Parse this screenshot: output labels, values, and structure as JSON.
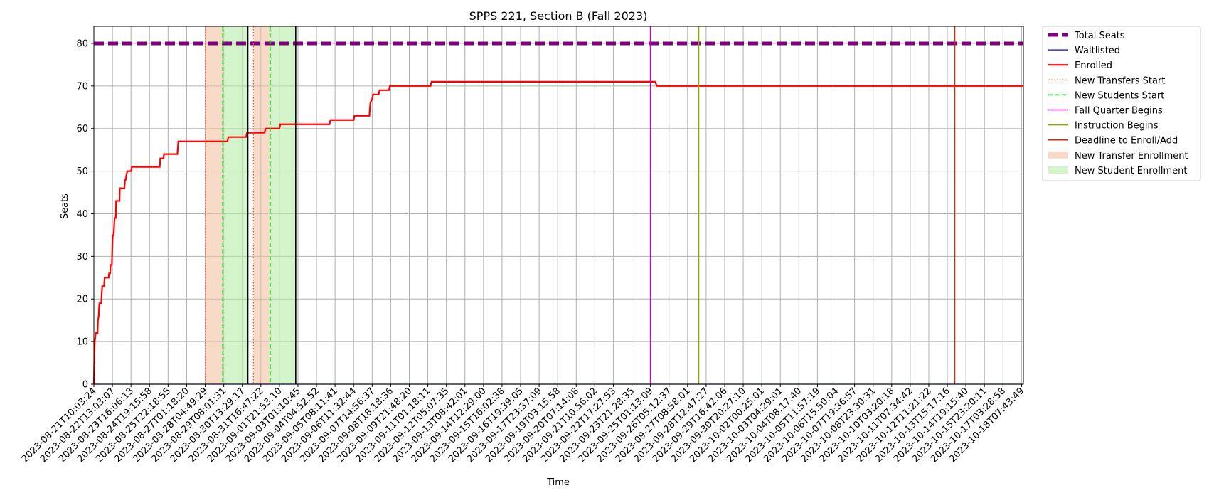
{
  "chart_data": {
    "type": "line",
    "title": "SPPS 221, Section B (Fall 2023)",
    "xlabel": "Time",
    "ylabel": "Seats",
    "ylim": [
      0,
      84
    ],
    "yticks": [
      0,
      10,
      20,
      30,
      40,
      50,
      60,
      70,
      80
    ],
    "grid": true,
    "legend_position": "outside-right",
    "x_ticks": [
      "2023-08-21T10:03:24",
      "2023-08-22T13:03:07",
      "2023-08-23T16:06:13",
      "2023-08-24T19:15:58",
      "2023-08-25T22:18:55",
      "2023-08-27T01:18:20",
      "2023-08-28T04:49:29",
      "2023-08-29T08:01:31",
      "2023-08-30T13:29:17",
      "2023-08-31T16:47:22",
      "2023-09-01T21:53:10",
      "2023-09-03T01:10:45",
      "2023-09-04T04:52:52",
      "2023-09-05T08:11:41",
      "2023-09-06T11:32:44",
      "2023-09-07T14:56:37",
      "2023-09-08T18:18:36",
      "2023-09-09T21:48:20",
      "2023-09-11T01:18:11",
      "2023-09-12T05:07:35",
      "2023-09-13T08:42:01",
      "2023-09-14T12:29:00",
      "2023-09-15T16:02:38",
      "2023-09-16T19:39:05",
      "2023-09-17T23:37:09",
      "2023-09-19T03:15:58",
      "2023-09-20T07:14:08",
      "2023-09-21T10:56:02",
      "2023-09-22T17:27:53",
      "2023-09-23T21:28:35",
      "2023-09-25T01:13:09",
      "2023-09-26T05:12:37",
      "2023-09-27T08:58:01",
      "2023-09-28T12:47:27",
      "2023-09-29T16:42:06",
      "2023-09-30T20:27:10",
      "2023-10-02T00:25:01",
      "2023-10-03T04:29:01",
      "2023-10-04T08:17:40",
      "2023-10-05T11:57:19",
      "2023-10-06T15:50:04",
      "2023-10-07T19:36:57",
      "2023-10-08T23:30:31",
      "2023-10-10T03:20:18",
      "2023-10-11T07:34:42",
      "2023-10-12T11:21:22",
      "2023-10-13T15:17:16",
      "2023-10-14T19:15:40",
      "2023-10-15T23:20:11",
      "2023-10-17T03:28:58",
      "2023-10-18T07:43:49"
    ],
    "x_range_ticks": [
      0,
      50.1
    ],
    "series": [
      {
        "name": "Total Seats",
        "color": "#800080",
        "style": "dashed-thick",
        "points": [
          [
            0,
            80
          ],
          [
            50.1,
            80
          ]
        ]
      },
      {
        "name": "Waitlisted",
        "color": "#0000ff",
        "style": "solid-thin",
        "points": [
          [
            0,
            0
          ],
          [
            50.1,
            0
          ]
        ]
      },
      {
        "name": "Enrolled",
        "color": "#ff0000",
        "style": "solid-thick",
        "points": [
          [
            0,
            0
          ],
          [
            0.02,
            5
          ],
          [
            0.05,
            10
          ],
          [
            0.1,
            12
          ],
          [
            0.2,
            12
          ],
          [
            0.22,
            15
          ],
          [
            0.26,
            16
          ],
          [
            0.28,
            18
          ],
          [
            0.3,
            19
          ],
          [
            0.4,
            19
          ],
          [
            0.42,
            21
          ],
          [
            0.45,
            23
          ],
          [
            0.55,
            23
          ],
          [
            0.58,
            25
          ],
          [
            0.8,
            25
          ],
          [
            0.82,
            26
          ],
          [
            0.88,
            26
          ],
          [
            0.9,
            28
          ],
          [
            0.97,
            28
          ],
          [
            1.0,
            33
          ],
          [
            1.02,
            35
          ],
          [
            1.07,
            35
          ],
          [
            1.09,
            37
          ],
          [
            1.12,
            39
          ],
          [
            1.18,
            39
          ],
          [
            1.2,
            43
          ],
          [
            1.38,
            43
          ],
          [
            1.4,
            46
          ],
          [
            1.65,
            46
          ],
          [
            1.68,
            48
          ],
          [
            1.72,
            48
          ],
          [
            1.75,
            49
          ],
          [
            1.8,
            50
          ],
          [
            2.0,
            50
          ],
          [
            2.05,
            51
          ],
          [
            3.55,
            51
          ],
          [
            3.58,
            53
          ],
          [
            3.75,
            53
          ],
          [
            3.78,
            54
          ],
          [
            4.5,
            54
          ],
          [
            4.55,
            57
          ],
          [
            7.2,
            57
          ],
          [
            7.25,
            58
          ],
          [
            8.2,
            58
          ],
          [
            8.25,
            59
          ],
          [
            9.2,
            59
          ],
          [
            9.25,
            60
          ],
          [
            10.0,
            60
          ],
          [
            10.05,
            61
          ],
          [
            12.7,
            61
          ],
          [
            12.75,
            62
          ],
          [
            14.0,
            62
          ],
          [
            14.05,
            63
          ],
          [
            14.85,
            63
          ],
          [
            14.9,
            66
          ],
          [
            15.0,
            67
          ],
          [
            15.05,
            68
          ],
          [
            15.35,
            68
          ],
          [
            15.4,
            69
          ],
          [
            15.9,
            69
          ],
          [
            15.95,
            70
          ],
          [
            18.15,
            70
          ],
          [
            18.2,
            71
          ],
          [
            30.25,
            71
          ],
          [
            30.35,
            70
          ],
          [
            50.1,
            70
          ]
        ]
      }
    ],
    "vlines": [
      {
        "name": "New Transfers Start",
        "color": "#ff5a1f",
        "style": "dotted",
        "x": 6.0
      },
      {
        "name": "New Students Start",
        "color": "#33cc33",
        "style": "dashed",
        "x": 6.95
      },
      {
        "name": "",
        "color": "#000000",
        "style": "solid",
        "x": 8.3
      },
      {
        "name": "",
        "color": "#ff5a1f",
        "style": "dotted",
        "x": 8.6
      },
      {
        "name": "",
        "color": "#33cc33",
        "style": "dashed",
        "x": 9.5
      },
      {
        "name": "",
        "color": "#000000",
        "style": "solid",
        "x": 10.88
      },
      {
        "name": "Fall Quarter Begins",
        "color": "#cc00cc",
        "style": "solid",
        "x": 30.0
      },
      {
        "name": "Instruction Begins",
        "color": "#88aa00",
        "style": "solid",
        "x": 32.6
      },
      {
        "name": "Deadline to Enroll/Add",
        "color": "#bb3311",
        "style": "solid",
        "x": 46.4
      }
    ],
    "spans": [
      {
        "name": "New Transfer Enrollment",
        "color": "#f4c2a4",
        "x0": 6.0,
        "x1": 6.95
      },
      {
        "name": "New Student Enrollment",
        "color": "#b8edaa",
        "x0": 6.95,
        "x1": 8.3
      },
      {
        "name": "",
        "color": "#f4c2a4",
        "x0": 8.6,
        "x1": 9.5
      },
      {
        "name": "",
        "color": "#b8edaa",
        "x0": 9.5,
        "x1": 10.88
      }
    ],
    "legend": [
      {
        "label": "Total Seats",
        "kind": "line",
        "color": "#800080",
        "style": "dashed-thick"
      },
      {
        "label": "Waitlisted",
        "kind": "line",
        "color": "#0000ff",
        "style": "solid-thin"
      },
      {
        "label": "Enrolled",
        "kind": "line",
        "color": "#ff0000",
        "style": "solid-thick"
      },
      {
        "label": "New Transfers Start",
        "kind": "line",
        "color": "#ff5a1f",
        "style": "dotted"
      },
      {
        "label": "New Students Start",
        "kind": "line",
        "color": "#33cc33",
        "style": "dashed"
      },
      {
        "label": "Fall Quarter Begins",
        "kind": "line",
        "color": "#cc00cc",
        "style": "solid"
      },
      {
        "label": "Instruction Begins",
        "kind": "line",
        "color": "#88aa00",
        "style": "solid"
      },
      {
        "label": "Deadline to Enroll/Add",
        "kind": "line",
        "color": "#bb3311",
        "style": "solid"
      },
      {
        "label": "New Transfer Enrollment",
        "kind": "patch",
        "color": "#f4c2a4"
      },
      {
        "label": "New Student Enrollment",
        "kind": "patch",
        "color": "#b8edaa"
      }
    ]
  }
}
